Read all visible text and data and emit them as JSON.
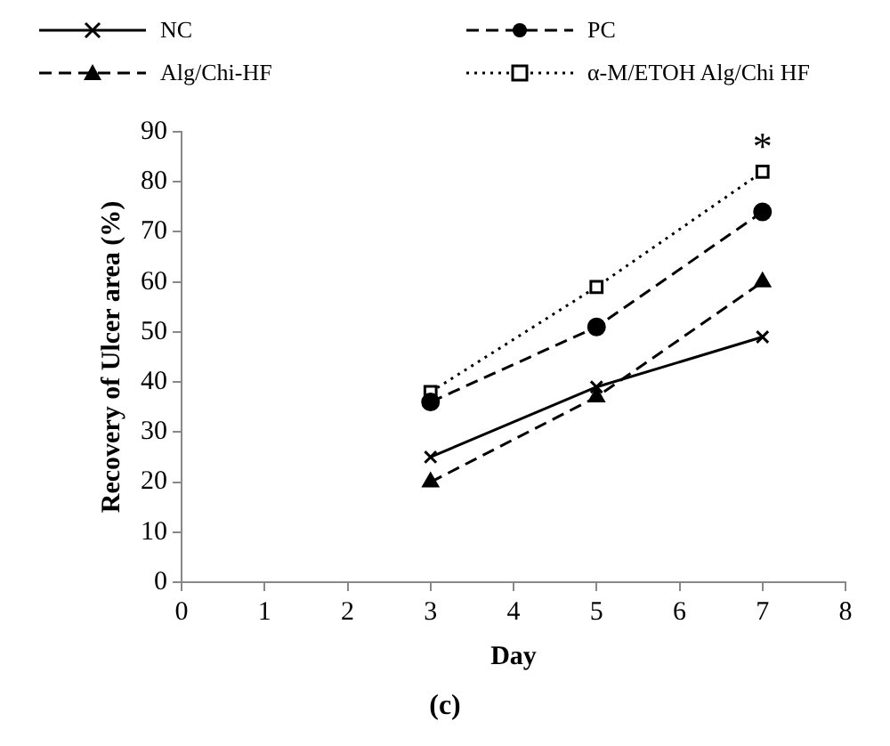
{
  "chart_data": {
    "type": "line",
    "xlabel": "Day",
    "ylabel": "Recovery of Ulcer area (%)",
    "x": [
      3,
      5,
      7
    ],
    "series": [
      {
        "name": "NC",
        "color": "#000000",
        "values": [
          25,
          39,
          49
        ],
        "marker": "cross",
        "line_style": "solid"
      },
      {
        "name": "Alg/Chi-HF",
        "color": "#000000",
        "values": [
          20,
          37,
          60
        ],
        "marker": "triangle",
        "line_style": "dashed"
      },
      {
        "name": "PC",
        "color": "#000000",
        "values": [
          36,
          51,
          74
        ],
        "marker": "circle",
        "line_style": "dashed"
      },
      {
        "name": "α-M/ETOH Alg/Chi HF",
        "color": "#000000",
        "values": [
          38,
          59,
          82
        ],
        "marker": "square",
        "line_style": "dotted"
      }
    ],
    "xlim": [
      0,
      8
    ],
    "xticks": [
      0,
      1,
      2,
      3,
      4,
      5,
      6,
      7,
      8
    ],
    "ylim": [
      0,
      90
    ],
    "yticks": [
      0,
      10,
      20,
      30,
      40,
      50,
      60,
      70,
      80,
      90
    ],
    "grid": false,
    "legend": "top",
    "annotations": [
      "*",
      "(c)"
    ]
  }
}
